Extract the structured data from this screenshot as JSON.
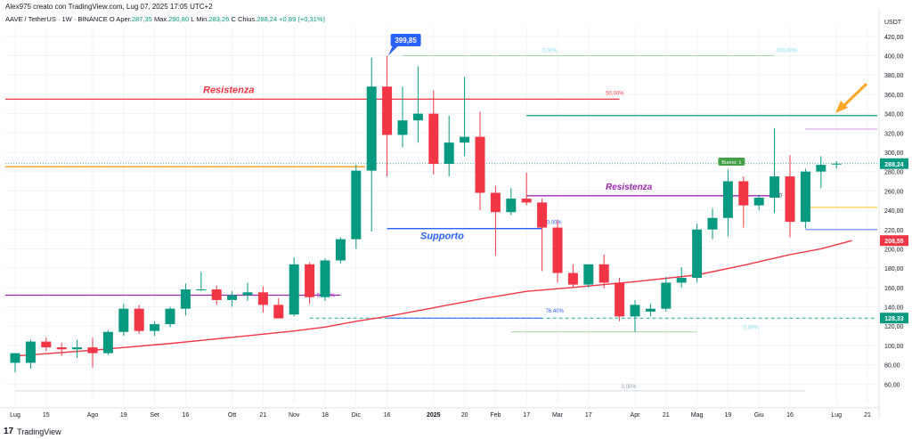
{
  "header": {
    "published_by": "Alex975 creato con TradingView.com, Lug 07, 2025 17:05 UTC+2",
    "symbol": "AAVE / TetherUS · 1W · BINANCE",
    "o_label": "O",
    "open_label": "Aper.",
    "open": "287,35",
    "high_label": "Max.",
    "high": "290,80",
    "l_label": "L",
    "low_label": "Min.",
    "low": "283,26",
    "c_label": "C",
    "close_label": "Chius.",
    "close": "288,24",
    "change": "+0,89 (+0,31%)"
  },
  "footer": {
    "logo": "17",
    "brand": "TradingView"
  },
  "chart_data": {
    "type": "candlestick",
    "currency": "USDT",
    "ylim": [
      40,
      430
    ],
    "y_ticks": [
      60,
      80,
      100,
      120,
      140,
      160,
      180,
      200,
      220,
      240,
      260,
      280,
      300,
      320,
      340,
      360,
      380,
      400,
      420
    ],
    "x_labels": [
      {
        "i": 0,
        "t": "Lug"
      },
      {
        "i": 2,
        "t": "15"
      },
      {
        "i": 5,
        "t": "Ago"
      },
      {
        "i": 7,
        "t": "19"
      },
      {
        "i": 9,
        "t": "Set"
      },
      {
        "i": 11,
        "t": "16"
      },
      {
        "i": 14,
        "t": "Ott"
      },
      {
        "i": 16,
        "t": "21"
      },
      {
        "i": 18,
        "t": "Nov"
      },
      {
        "i": 20,
        "t": "18"
      },
      {
        "i": 22,
        "t": "Dic"
      },
      {
        "i": 24,
        "t": "16"
      },
      {
        "i": 27,
        "t": "2025"
      },
      {
        "i": 29,
        "t": "20"
      },
      {
        "i": 31,
        "t": "Feb"
      },
      {
        "i": 33,
        "t": "17"
      },
      {
        "i": 35,
        "t": "Mar"
      },
      {
        "i": 37,
        "t": "17"
      },
      {
        "i": 40,
        "t": "Apr"
      },
      {
        "i": 42,
        "t": "21"
      },
      {
        "i": 44,
        "t": "Mag"
      },
      {
        "i": 46,
        "t": "19"
      },
      {
        "i": 48,
        "t": "Giu"
      },
      {
        "i": 50,
        "t": "16"
      },
      {
        "i": 53,
        "t": "Lug"
      },
      {
        "i": 55,
        "t": "21"
      }
    ],
    "candles": [
      {
        "o": 82,
        "h": 90,
        "l": 72,
        "c": 92
      },
      {
        "o": 82,
        "h": 106,
        "l": 76,
        "c": 104
      },
      {
        "o": 104,
        "h": 108,
        "l": 94,
        "c": 98
      },
      {
        "o": 98,
        "h": 103,
        "l": 89,
        "c": 96
      },
      {
        "o": 96,
        "h": 106,
        "l": 87,
        "c": 98
      },
      {
        "o": 98,
        "h": 108,
        "l": 77,
        "c": 92
      },
      {
        "o": 92,
        "h": 116,
        "l": 90,
        "c": 114
      },
      {
        "o": 114,
        "h": 143,
        "l": 110,
        "c": 138
      },
      {
        "o": 138,
        "h": 142,
        "l": 112,
        "c": 115
      },
      {
        "o": 115,
        "h": 125,
        "l": 110,
        "c": 122
      },
      {
        "o": 122,
        "h": 140,
        "l": 119,
        "c": 138
      },
      {
        "o": 138,
        "h": 164,
        "l": 131,
        "c": 158
      },
      {
        "o": 158,
        "h": 176,
        "l": 156,
        "c": 158
      },
      {
        "o": 158,
        "h": 162,
        "l": 142,
        "c": 147
      },
      {
        "o": 147,
        "h": 156,
        "l": 140,
        "c": 152
      },
      {
        "o": 152,
        "h": 165,
        "l": 146,
        "c": 155
      },
      {
        "o": 155,
        "h": 161,
        "l": 134,
        "c": 142
      },
      {
        "o": 142,
        "h": 149,
        "l": 129,
        "c": 128
      },
      {
        "o": 132,
        "h": 191,
        "l": 130,
        "c": 184
      },
      {
        "o": 184,
        "h": 186,
        "l": 143,
        "c": 150
      },
      {
        "o": 150,
        "h": 190,
        "l": 146,
        "c": 188
      },
      {
        "o": 188,
        "h": 212,
        "l": 185,
        "c": 210
      },
      {
        "o": 210,
        "h": 287,
        "l": 200,
        "c": 281
      },
      {
        "o": 281,
        "h": 398,
        "l": 218,
        "c": 368
      },
      {
        "o": 368,
        "h": 399.85,
        "l": 275,
        "c": 318
      },
      {
        "o": 318,
        "h": 368,
        "l": 305,
        "c": 333
      },
      {
        "o": 333,
        "h": 389,
        "l": 310,
        "c": 340
      },
      {
        "o": 340,
        "h": 364,
        "l": 277,
        "c": 288
      },
      {
        "o": 288,
        "h": 338,
        "l": 275,
        "c": 310
      },
      {
        "o": 310,
        "h": 378,
        "l": 296,
        "c": 316
      },
      {
        "o": 316,
        "h": 342,
        "l": 240,
        "c": 258
      },
      {
        "o": 258,
        "h": 265,
        "l": 193,
        "c": 238
      },
      {
        "o": 238,
        "h": 263,
        "l": 235,
        "c": 252
      },
      {
        "o": 252,
        "h": 279,
        "l": 245,
        "c": 248
      },
      {
        "o": 248,
        "h": 252,
        "l": 177,
        "c": 222
      },
      {
        "o": 222,
        "h": 230,
        "l": 165,
        "c": 175
      },
      {
        "o": 175,
        "h": 184,
        "l": 160,
        "c": 163
      },
      {
        "o": 163,
        "h": 184,
        "l": 160,
        "c": 184
      },
      {
        "o": 184,
        "h": 194,
        "l": 159,
        "c": 165
      },
      {
        "o": 165,
        "h": 170,
        "l": 125,
        "c": 130
      },
      {
        "o": 130,
        "h": 147,
        "l": 114,
        "c": 142
      },
      {
        "o": 135,
        "h": 143,
        "l": 130,
        "c": 138
      },
      {
        "o": 138,
        "h": 171,
        "l": 135,
        "c": 165
      },
      {
        "o": 165,
        "h": 181,
        "l": 160,
        "c": 170
      },
      {
        "o": 170,
        "h": 226,
        "l": 165,
        "c": 220
      },
      {
        "o": 220,
        "h": 242,
        "l": 210,
        "c": 232
      },
      {
        "o": 232,
        "h": 282,
        "l": 213,
        "c": 270
      },
      {
        "o": 270,
        "h": 275,
        "l": 222,
        "c": 245
      },
      {
        "o": 245,
        "h": 256,
        "l": 240,
        "c": 253
      },
      {
        "o": 253,
        "h": 325,
        "l": 237,
        "c": 275
      },
      {
        "o": 275,
        "h": 297,
        "l": 212,
        "c": 228
      },
      {
        "o": 228,
        "h": 283,
        "l": 221,
        "c": 280
      },
      {
        "o": 280,
        "h": 296,
        "l": 263,
        "c": 287
      },
      {
        "o": 287.35,
        "h": 290.8,
        "l": 283.26,
        "c": 288.24
      }
    ],
    "moving_average": [
      {
        "i": 0,
        "v": 89
      },
      {
        "i": 5,
        "v": 95
      },
      {
        "i": 10,
        "v": 102
      },
      {
        "i": 15,
        "v": 110
      },
      {
        "i": 18,
        "v": 115
      },
      {
        "i": 20,
        "v": 119
      },
      {
        "i": 22,
        "v": 125
      },
      {
        "i": 24,
        "v": 130
      },
      {
        "i": 26,
        "v": 136
      },
      {
        "i": 28,
        "v": 142
      },
      {
        "i": 30,
        "v": 148
      },
      {
        "i": 33,
        "v": 156
      },
      {
        "i": 36,
        "v": 160
      },
      {
        "i": 40,
        "v": 166
      },
      {
        "i": 44,
        "v": 173
      },
      {
        "i": 47,
        "v": 183
      },
      {
        "i": 50,
        "v": 194
      },
      {
        "i": 52,
        "v": 200
      },
      {
        "i": 54,
        "v": 208.55
      }
    ],
    "price_labels": [
      {
        "value": "288,24",
        "v": 288.24,
        "color": "#089981"
      },
      {
        "value": "208,55",
        "v": 208.55,
        "color": "#f23645"
      },
      {
        "value": "128,33",
        "v": 128.33,
        "color": "#089981"
      }
    ],
    "peak_label": {
      "text": "399,85",
      "i": 24,
      "v": 399.85
    },
    "annotations": {
      "resistance_red": {
        "text": "Resistenza",
        "v": 355,
        "color": "#f23645"
      },
      "resistance_purple": {
        "text": "Resistenza",
        "v": 255,
        "color": "#9c27b0"
      },
      "support": {
        "text": "Supporto",
        "v": 221,
        "color": "#2962ff"
      },
      "orange_line": {
        "v": 285,
        "color": "#ff9800"
      },
      "purple_line_left": {
        "v": 152,
        "color": "#9c27b0"
      },
      "fib_left": {
        "labels": [
          "0,00%",
          "50,00%",
          "76,40%"
        ],
        "values": [
          221,
          152,
          128.3
        ]
      },
      "fib_right": {
        "labels": [
          "0,00%",
          "100,00%",
          "50,00%",
          "0,00%",
          "0,00%"
        ],
        "values": [
          400,
          400,
          356,
          114,
          53
        ]
      },
      "green_line": {
        "v": 338,
        "color": "#089981"
      },
      "small_lines": [
        {
          "v": 324,
          "color": "#ce93d8"
        },
        {
          "v": 243,
          "color": "#fbc02d"
        },
        {
          "v": 220,
          "color": "#5c7cfa"
        }
      ],
      "green_badge": {
        "text": "Buono: 1",
        "v": 288
      },
      "zero_label": {
        "text": "0",
        "v": 256
      }
    }
  }
}
